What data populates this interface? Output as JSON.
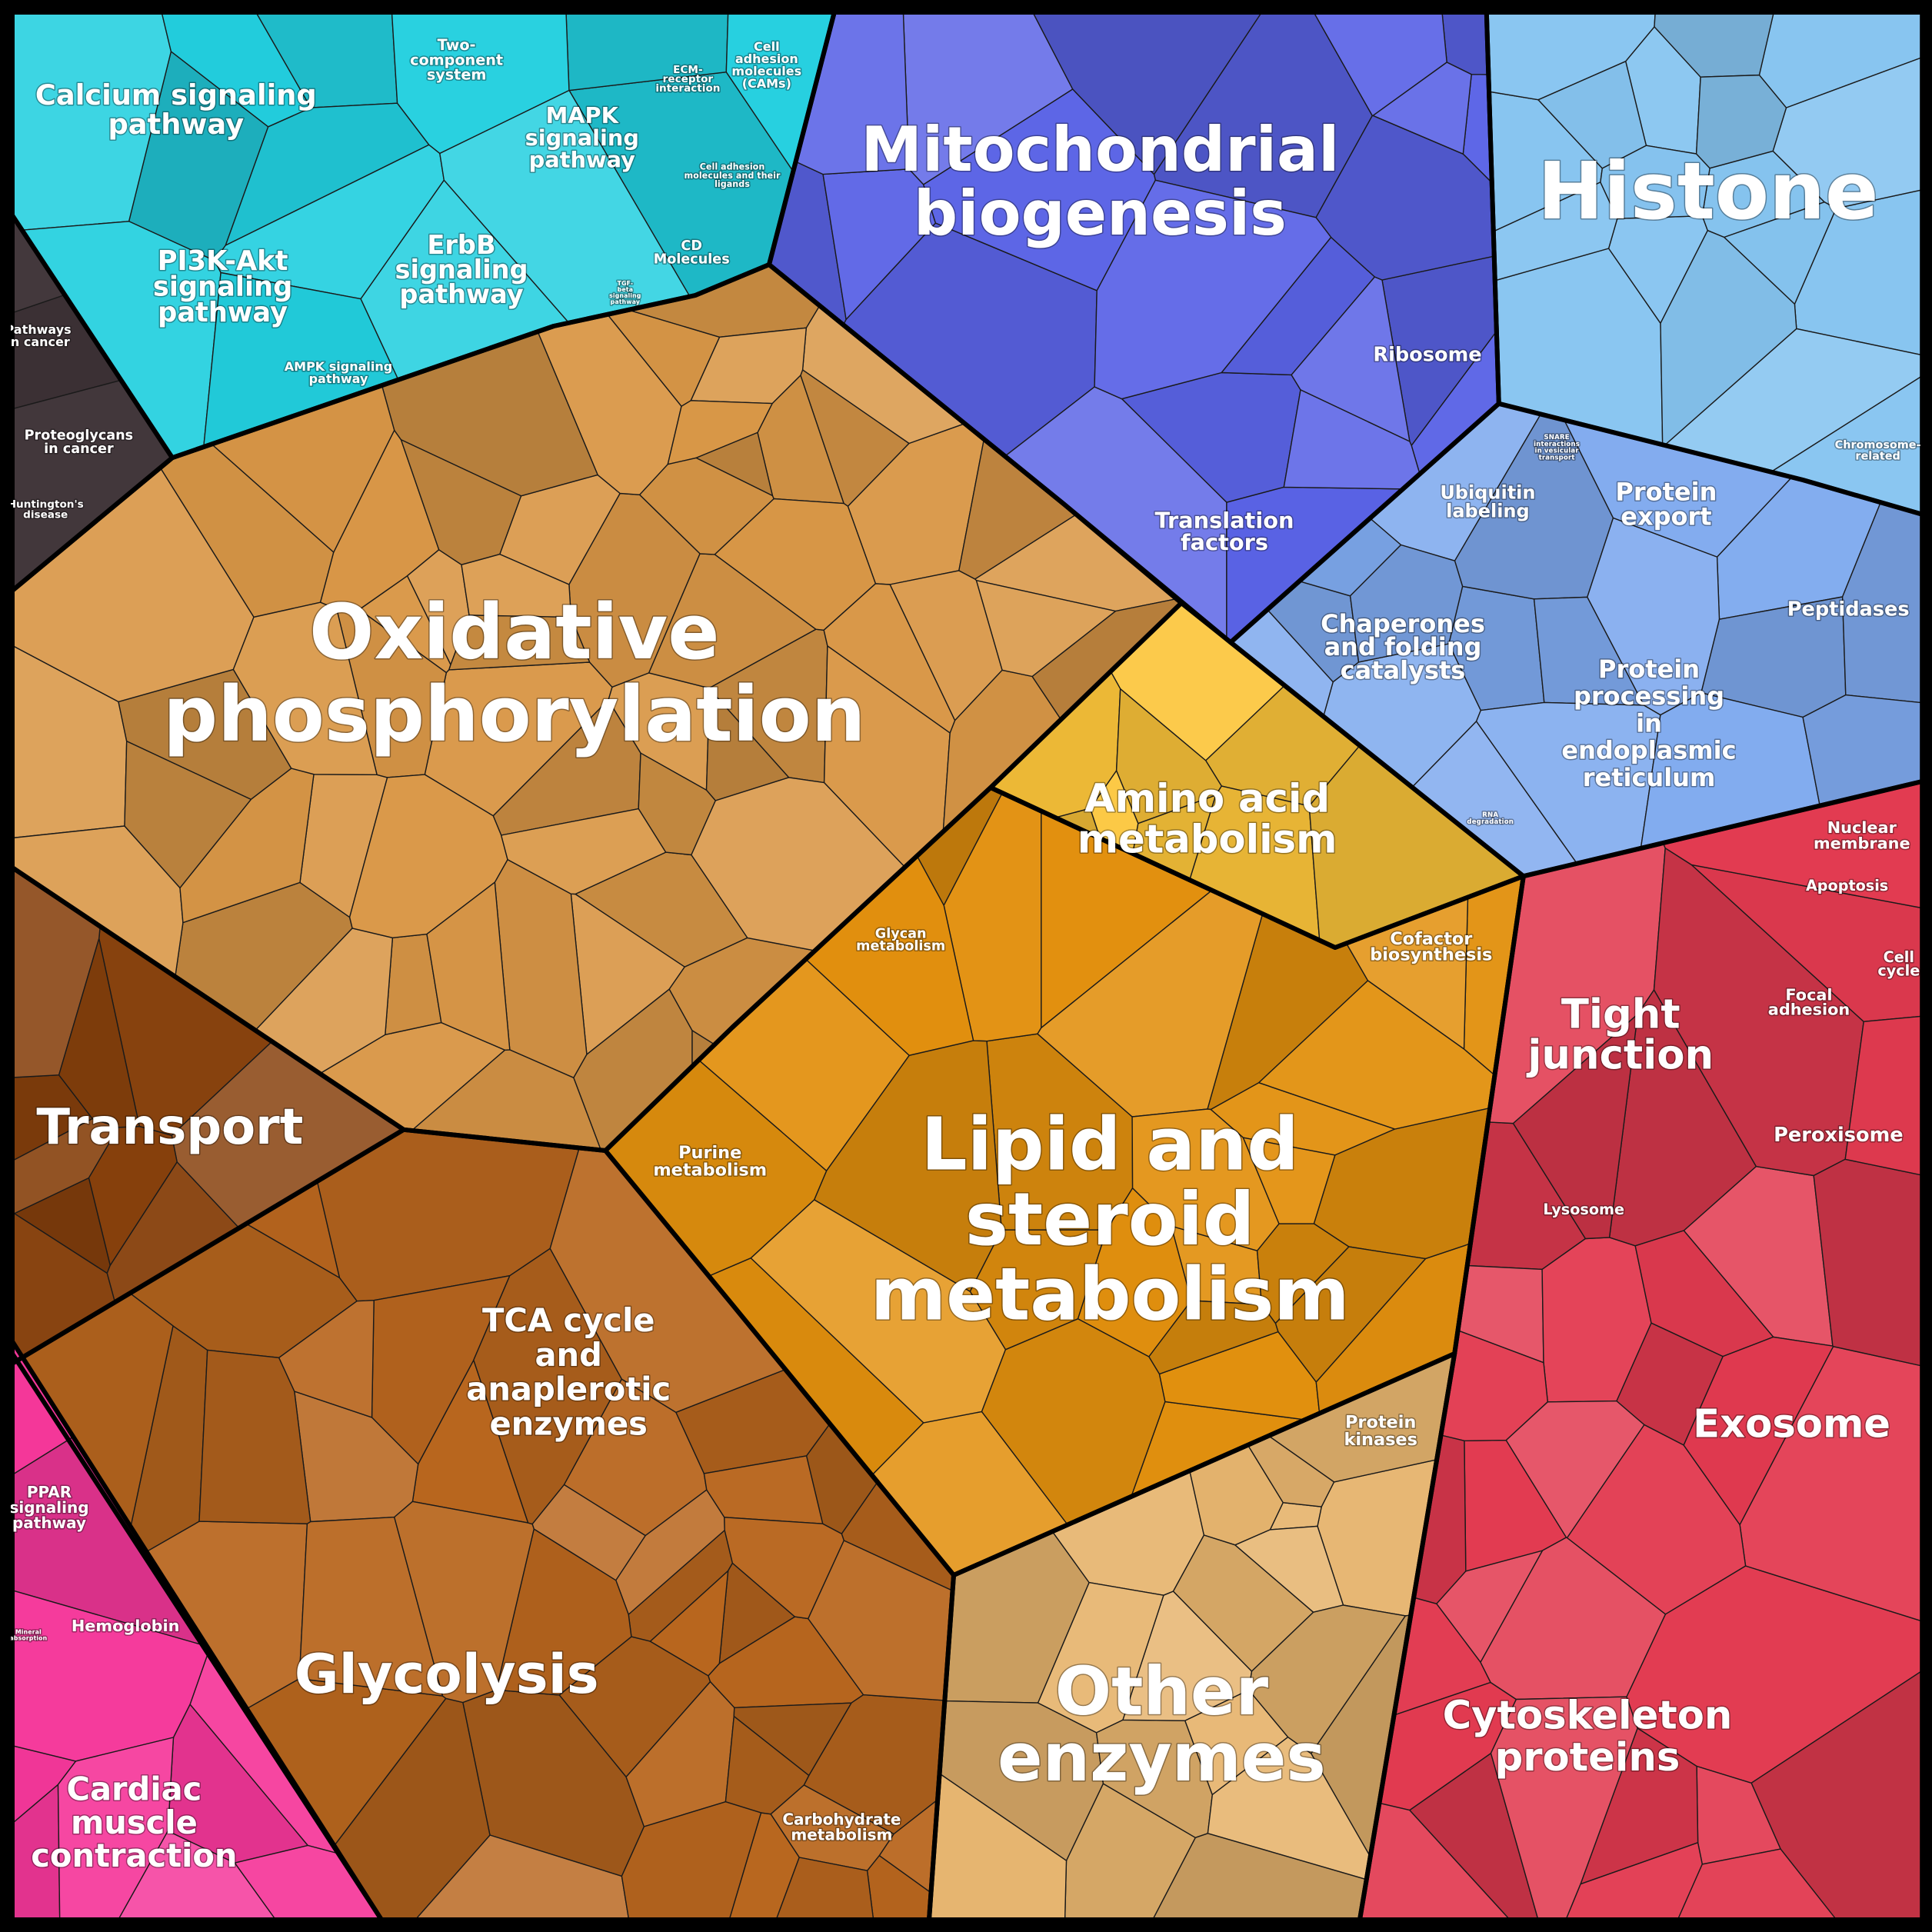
{
  "colors": {
    "signaling": "#22cfdf",
    "cancer": "#3a2f33",
    "mito": "#5a63e6",
    "histone": "#86c4f0",
    "protein": "#7ea9ee",
    "oxphos": "#d99747",
    "amino": "#fcc53a",
    "lipid": "#e2900e",
    "transport": "#86400c",
    "tca": "#b8661e",
    "carb": "#cc6a28",
    "other": "#e6b46e",
    "kinases": "#f2cc79",
    "ppar": "#f5379a",
    "red": "#e23a50",
    "darkred": "#b0101e"
  },
  "groups": [
    {
      "id": "calcium",
      "label": [
        "Calcium signaling",
        "pathway"
      ]
    },
    {
      "id": "pi3k",
      "label": [
        "PI3K-Akt",
        "signaling",
        "pathway"
      ]
    },
    {
      "id": "two-component",
      "label": [
        "Two-",
        "component",
        "system"
      ]
    },
    {
      "id": "mapk",
      "label": [
        "MAPK",
        "signaling",
        "pathway"
      ]
    },
    {
      "id": "erbb",
      "label": [
        "ErbB",
        "signaling",
        "pathway"
      ]
    },
    {
      "id": "ecm",
      "label": [
        "ECM-",
        "receptor",
        "interaction"
      ]
    },
    {
      "id": "cams",
      "label": [
        "Cell",
        "adhesion",
        "molecules",
        "(CAMs)"
      ]
    },
    {
      "id": "cell-adhesion-ligands",
      "label": [
        "Cell adhesion",
        "molecules and their",
        "ligands"
      ]
    },
    {
      "id": "cd-molecules",
      "label": [
        "CD",
        "Molecules"
      ]
    },
    {
      "id": "tgf-beta",
      "label": [
        "TGF-",
        "beta",
        "signaling",
        "pathway"
      ]
    },
    {
      "id": "ampk",
      "label": [
        "AMPK signaling",
        "pathway"
      ]
    },
    {
      "id": "pathways-cancer",
      "label": [
        "Pathways",
        "in cancer"
      ]
    },
    {
      "id": "proteoglycans",
      "label": [
        "Proteoglycans",
        "in cancer"
      ]
    },
    {
      "id": "huntington",
      "label": [
        "Huntington's",
        "disease"
      ]
    },
    {
      "id": "mito-biogenesis",
      "label": [
        "Mitochondrial",
        "biogenesis"
      ]
    },
    {
      "id": "ribosome",
      "label": [
        "Ribosome"
      ]
    },
    {
      "id": "translation",
      "label": [
        "Translation",
        "factors"
      ]
    },
    {
      "id": "histone",
      "label": [
        "Histone"
      ]
    },
    {
      "id": "chromosome",
      "label": [
        "Chromosome-",
        "related"
      ]
    },
    {
      "id": "snare",
      "label": [
        "SNARE",
        "interactions",
        "in vesicular",
        "transport"
      ]
    },
    {
      "id": "ubiquitin",
      "label": [
        "Ubiquitin",
        "labeling"
      ]
    },
    {
      "id": "protein-export",
      "label": [
        "Protein",
        "export"
      ]
    },
    {
      "id": "peptidases",
      "label": [
        "Peptidases"
      ]
    },
    {
      "id": "chaperones",
      "label": [
        "Chaperones",
        "and folding",
        "catalysts"
      ]
    },
    {
      "id": "protein-er",
      "label": [
        "Protein",
        "processing",
        "in",
        "endoplasmic",
        "reticulum"
      ]
    },
    {
      "id": "rna-degradation",
      "label": [
        "RNA",
        "degradation"
      ]
    },
    {
      "id": "oxphos",
      "label": [
        "Oxidative",
        "phosphorylation"
      ]
    },
    {
      "id": "amino",
      "label": [
        "Amino acid",
        "metabolism"
      ]
    },
    {
      "id": "glycan",
      "label": [
        "Glycan",
        "metabolism"
      ]
    },
    {
      "id": "cofactor",
      "label": [
        "Cofactor",
        "biosynthesis"
      ]
    },
    {
      "id": "purine",
      "label": [
        "Purine",
        "metabolism"
      ]
    },
    {
      "id": "lipid",
      "label": [
        "Lipid and",
        "steroid",
        "metabolism"
      ]
    },
    {
      "id": "transport",
      "label": [
        "Transport"
      ]
    },
    {
      "id": "tca",
      "label": [
        "TCA cycle",
        "and",
        "anaplerotic",
        "enzymes"
      ]
    },
    {
      "id": "glycolysis",
      "label": [
        "Glycolysis"
      ]
    },
    {
      "id": "carbohydrate",
      "label": [
        "Carbohydrate",
        "metabolism"
      ]
    },
    {
      "id": "protein-kinases",
      "label": [
        "Protein",
        "kinases"
      ]
    },
    {
      "id": "other-enzymes",
      "label": [
        "Other",
        "enzymes"
      ]
    },
    {
      "id": "ppar",
      "label": [
        "PPAR",
        "signaling",
        "pathway"
      ]
    },
    {
      "id": "mineral",
      "label": [
        "Mineral",
        "absorption"
      ]
    },
    {
      "id": "hemoglobin",
      "label": [
        "Hemoglobin"
      ]
    },
    {
      "id": "cardiac",
      "label": [
        "Cardiac",
        "muscle",
        "contraction"
      ]
    },
    {
      "id": "nuclear-membrane",
      "label": [
        "Nuclear",
        "membrane"
      ]
    },
    {
      "id": "apoptosis",
      "label": [
        "Apoptosis"
      ]
    },
    {
      "id": "cell-cycle",
      "label": [
        "Cell",
        "cycle"
      ]
    },
    {
      "id": "tight-junction",
      "label": [
        "Tight",
        "junction"
      ]
    },
    {
      "id": "focal-adhesion",
      "label": [
        "Focal",
        "adhesion"
      ]
    },
    {
      "id": "peroxisome",
      "label": [
        "Peroxisome"
      ]
    },
    {
      "id": "lysosome",
      "label": [
        "Lysosome"
      ]
    },
    {
      "id": "exosome",
      "label": [
        "Exosome"
      ]
    },
    {
      "id": "cytoskeleton",
      "label": [
        "Cytoskeleton",
        "proteins"
      ]
    }
  ]
}
